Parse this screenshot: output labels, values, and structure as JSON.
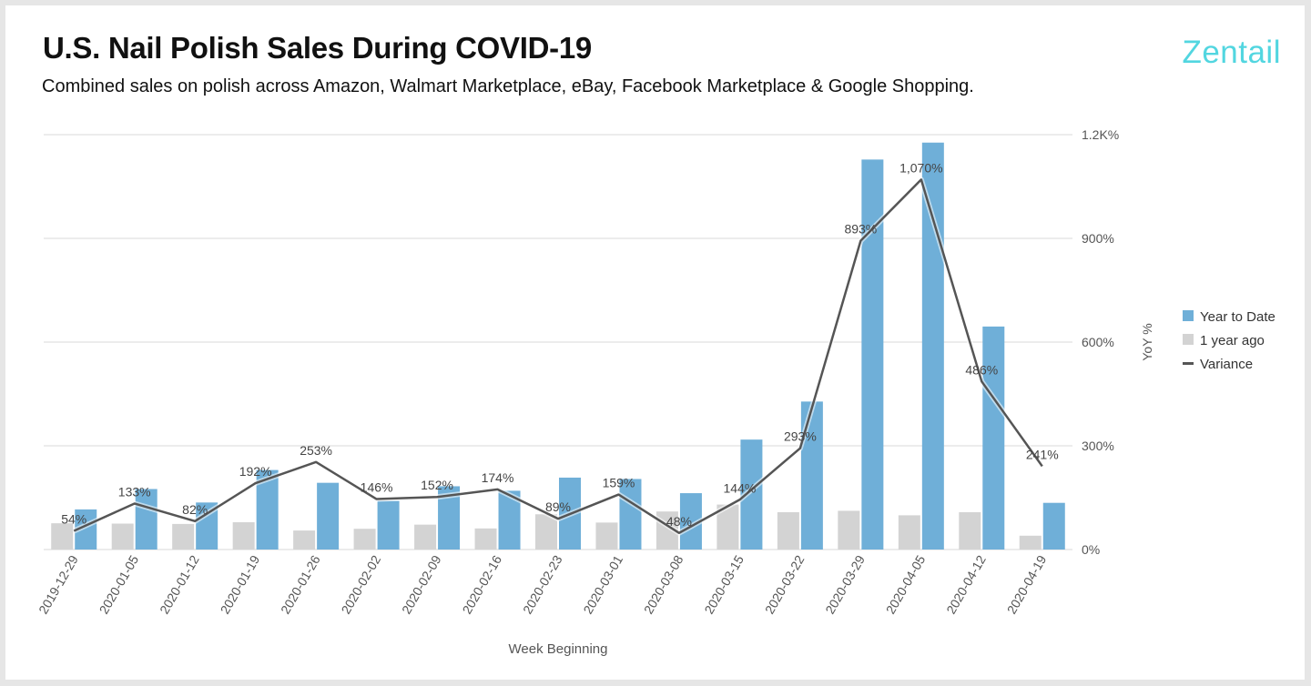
{
  "header": {
    "title": "U.S. Nail Polish Sales During COVID-19",
    "subtitle": "Combined sales on polish across Amazon, Walmart Marketplace, eBay, Facebook Marketplace & Google Shopping.",
    "logo": "Zentail"
  },
  "colors": {
    "ytd": "#6fafd8",
    "prior": "#d3d3d3",
    "variance": "#555555",
    "grid": "#d9d9d9",
    "axis_text": "#555555",
    "logo": "#52d6e0"
  },
  "chart_data": {
    "type": "bar",
    "title": "U.S. Nail Polish Sales During COVID-19",
    "subtitle": "Combined sales on polish across Amazon, Walmart Marketplace, eBay, Facebook Marketplace & Google Shopping.",
    "xlabel": "Week Beginning",
    "y2label": "YoY %",
    "y2lim": [
      0,
      1200
    ],
    "y2ticks": [
      "0%",
      "300%",
      "600%",
      "900%",
      "1.2K%"
    ],
    "y2tick_values": [
      0,
      300,
      600,
      900,
      1200
    ],
    "grid": true,
    "legend_position": "right",
    "categories": [
      "2019-12-29",
      "2020-01-05",
      "2020-01-12",
      "2020-01-19",
      "2020-01-26",
      "2020-02-02",
      "2020-02-09",
      "2020-02-16",
      "2020-02-23",
      "2020-03-01",
      "2020-03-08",
      "2020-03-15",
      "2020-03-22",
      "2020-03-29",
      "2020-04-05",
      "2020-04-12",
      "2020-04-19"
    ],
    "series": [
      {
        "name": "Year to Date",
        "kind": "bar",
        "axis": "unlabeled",
        "values": [
          116,
          175,
          136,
          230,
          193,
          141,
          183,
          170,
          208,
          204,
          163,
          318,
          428,
          1128,
          1177,
          645,
          135
        ]
      },
      {
        "name": "1 year ago",
        "kind": "bar",
        "axis": "unlabeled",
        "values": [
          76,
          75,
          74,
          79,
          55,
          60,
          72,
          61,
          102,
          78,
          110,
          130,
          108,
          112,
          99,
          108,
          40
        ]
      },
      {
        "name": "Variance",
        "kind": "line",
        "axis": "YoY %",
        "values": [
          54,
          133,
          82,
          192,
          253,
          146,
          152,
          174,
          89,
          159,
          48,
          144,
          293,
          893,
          1070,
          486,
          241
        ],
        "labels": [
          "54%",
          "133%",
          "82%",
          "192%",
          "253%",
          "146%",
          "152%",
          "174%",
          "89%",
          "159%",
          "48%",
          "144%",
          "293%",
          "893%",
          "1,070%",
          "486%",
          "241%"
        ]
      }
    ]
  }
}
